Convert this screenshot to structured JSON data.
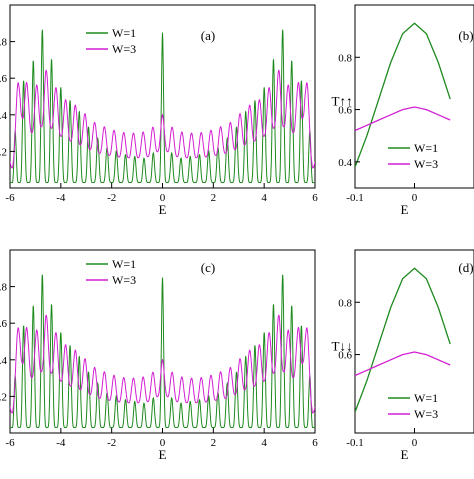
{
  "colors": {
    "green": "#1e8a1e",
    "magenta": "#d21fd2",
    "axis": "#000000"
  },
  "chart_data": [
    {
      "type": "line",
      "panel_label": "(a)",
      "xlabel": "E",
      "ylabel": "",
      "xlim": [
        -6,
        6
      ],
      "ylim": [
        0,
        1
      ],
      "xticks": [
        "-6",
        "-4",
        "-2",
        "0",
        "2",
        "4",
        "6"
      ],
      "yticks": [
        ".2",
        ".4",
        ".6",
        ".8"
      ],
      "legend_position": "top-left",
      "grid": false,
      "series": [
        {
          "name": "W=1",
          "color": "#1e8a1e",
          "x": [
            -5.9,
            -5.6,
            -5.3,
            -5.0,
            -4.6,
            -4.2,
            -3.8,
            -3.4,
            -3.0,
            -2.6,
            -2.2,
            -1.8,
            -1.4,
            -1.0,
            -0.6,
            -0.3,
            0,
            0.3,
            0.6,
            1.0,
            1.4,
            1.8,
            2.2,
            2.6,
            3.0,
            3.4,
            3.8,
            4.2,
            4.6,
            5.0,
            5.3,
            5.6,
            5.9
          ],
          "y": [
            0.03,
            0.93,
            0.2,
            0.9,
            0.85,
            0.6,
            0.5,
            0.45,
            0.35,
            0.28,
            0.22,
            0.2,
            0.18,
            0.17,
            0.16,
            0.2,
            0.85,
            0.2,
            0.16,
            0.17,
            0.18,
            0.2,
            0.22,
            0.28,
            0.35,
            0.45,
            0.5,
            0.6,
            0.85,
            0.9,
            0.2,
            0.93,
            0.03
          ]
        },
        {
          "name": "W=3",
          "color": "#d21fd2",
          "x": [
            -5.9,
            -5.6,
            -5.3,
            -5.0,
            -4.6,
            -4.2,
            -3.8,
            -3.4,
            -3.0,
            -2.6,
            -2.2,
            -1.8,
            -1.4,
            -1.0,
            -0.6,
            -0.3,
            0,
            0.3,
            0.6,
            1.0,
            1.4,
            1.8,
            2.2,
            2.6,
            3.0,
            3.4,
            3.8,
            4.2,
            4.6,
            5.0,
            5.3,
            5.6,
            5.9
          ],
          "y": [
            0.2,
            0.75,
            0.55,
            0.55,
            0.65,
            0.55,
            0.48,
            0.45,
            0.4,
            0.35,
            0.33,
            0.31,
            0.3,
            0.3,
            0.31,
            0.34,
            0.4,
            0.34,
            0.31,
            0.3,
            0.3,
            0.31,
            0.33,
            0.35,
            0.4,
            0.45,
            0.48,
            0.55,
            0.65,
            0.55,
            0.55,
            0.75,
            0.2
          ]
        }
      ]
    },
    {
      "type": "line",
      "panel_label": "(b)",
      "xlabel": "E",
      "ylabel": "T↑↑",
      "xlim": [
        -0.1,
        0.1
      ],
      "ylim": [
        0.3,
        1.0
      ],
      "xticks": [
        "-0.1",
        "0"
      ],
      "yticks": [
        "0.4",
        "0.6",
        "0.8"
      ],
      "legend_position": "bottom-right",
      "grid": false,
      "series": [
        {
          "name": "W=1",
          "color": "#1e8a1e",
          "x": [
            -0.1,
            -0.08,
            -0.06,
            -0.04,
            -0.02,
            0,
            0.02,
            0.04,
            0.06
          ],
          "y": [
            0.38,
            0.5,
            0.64,
            0.78,
            0.89,
            0.93,
            0.89,
            0.78,
            0.64
          ]
        },
        {
          "name": "W=3",
          "color": "#d21fd2",
          "x": [
            -0.1,
            -0.08,
            -0.06,
            -0.04,
            -0.02,
            0,
            0.02,
            0.04,
            0.06
          ],
          "y": [
            0.52,
            0.54,
            0.56,
            0.58,
            0.6,
            0.61,
            0.6,
            0.58,
            0.56
          ]
        }
      ]
    },
    {
      "type": "line",
      "panel_label": "(c)",
      "xlabel": "E",
      "ylabel": "",
      "xlim": [
        -6,
        6
      ],
      "ylim": [
        0,
        1
      ],
      "xticks": [
        "-6",
        "-4",
        "-2",
        "0",
        "2",
        "4",
        "6"
      ],
      "yticks": [
        ".2",
        ".4",
        ".6",
        ".8"
      ],
      "legend_position": "top-left",
      "grid": false,
      "series": [
        {
          "name": "W=1",
          "color": "#1e8a1e",
          "x": [
            -5.9,
            -5.6,
            -5.3,
            -5.0,
            -4.6,
            -4.2,
            -3.8,
            -3.4,
            -3.0,
            -2.6,
            -2.2,
            -1.8,
            -1.4,
            -1.0,
            -0.6,
            -0.3,
            0,
            0.3,
            0.6,
            1.0,
            1.4,
            1.8,
            2.2,
            2.6,
            3.0,
            3.4,
            3.8,
            4.2,
            4.6,
            5.0,
            5.3,
            5.6,
            5.9
          ],
          "y": [
            0.03,
            0.93,
            0.2,
            0.9,
            0.85,
            0.6,
            0.5,
            0.45,
            0.35,
            0.28,
            0.22,
            0.2,
            0.18,
            0.17,
            0.16,
            0.2,
            0.85,
            0.2,
            0.16,
            0.17,
            0.18,
            0.2,
            0.22,
            0.28,
            0.35,
            0.45,
            0.5,
            0.6,
            0.85,
            0.9,
            0.2,
            0.93,
            0.03
          ]
        },
        {
          "name": "W=3",
          "color": "#d21fd2",
          "x": [
            -5.9,
            -5.6,
            -5.3,
            -5.0,
            -4.6,
            -4.2,
            -3.8,
            -3.4,
            -3.0,
            -2.6,
            -2.2,
            -1.8,
            -1.4,
            -1.0,
            -0.6,
            -0.3,
            0,
            0.3,
            0.6,
            1.0,
            1.4,
            1.8,
            2.2,
            2.6,
            3.0,
            3.4,
            3.8,
            4.2,
            4.6,
            5.0,
            5.3,
            5.6,
            5.9
          ],
          "y": [
            0.2,
            0.75,
            0.55,
            0.55,
            0.65,
            0.55,
            0.48,
            0.45,
            0.4,
            0.35,
            0.33,
            0.31,
            0.3,
            0.3,
            0.31,
            0.34,
            0.4,
            0.34,
            0.31,
            0.3,
            0.3,
            0.31,
            0.33,
            0.35,
            0.4,
            0.45,
            0.48,
            0.55,
            0.65,
            0.55,
            0.55,
            0.75,
            0.2
          ]
        }
      ]
    },
    {
      "type": "line",
      "panel_label": "(d)",
      "xlabel": "E",
      "ylabel": "T↓↓",
      "xlim": [
        -0.1,
        0.1
      ],
      "ylim": [
        0.3,
        1.0
      ],
      "xticks": [
        "-0.1",
        "0"
      ],
      "yticks": [
        "0.6",
        "0.8"
      ],
      "legend_position": "bottom-right",
      "grid": false,
      "series": [
        {
          "name": "W=1",
          "color": "#1e8a1e",
          "x": [
            -0.1,
            -0.08,
            -0.06,
            -0.04,
            -0.02,
            0,
            0.02,
            0.04,
            0.06
          ],
          "y": [
            0.38,
            0.5,
            0.64,
            0.78,
            0.89,
            0.93,
            0.89,
            0.78,
            0.64
          ]
        },
        {
          "name": "W=3",
          "color": "#d21fd2",
          "x": [
            -0.1,
            -0.08,
            -0.06,
            -0.04,
            -0.02,
            0,
            0.02,
            0.04,
            0.06
          ],
          "y": [
            0.52,
            0.54,
            0.56,
            0.58,
            0.6,
            0.61,
            0.6,
            0.58,
            0.56
          ]
        }
      ]
    }
  ]
}
